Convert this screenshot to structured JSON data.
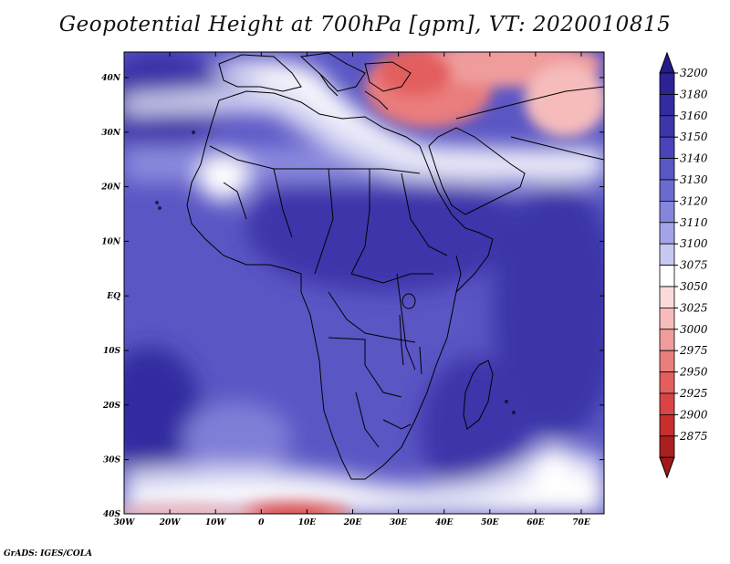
{
  "title": "Geopotential Height at 700hPa [gpm], VT: 2020010815",
  "footer": "GrADS: IGES/COLA",
  "map": {
    "lon_labels": [
      "30W",
      "20W",
      "10W",
      "0",
      "10E",
      "20E",
      "30E",
      "40E",
      "50E",
      "60E",
      "70E"
    ],
    "lat_labels": [
      "40N",
      "30N",
      "20N",
      "10N",
      "EQ",
      "10S",
      "20S",
      "30S",
      "40S"
    ]
  },
  "colorbar": {
    "levels": [
      "3200",
      "3180",
      "3160",
      "3150",
      "3140",
      "3130",
      "3120",
      "3110",
      "3100",
      "3075",
      "3050",
      "3025",
      "3000",
      "2975",
      "2950",
      "2925",
      "2900",
      "2875"
    ],
    "colors": {
      "top_cap": "#241a8a",
      "segments": [
        "#2b2394",
        "#332ba0",
        "#3d36aa",
        "#4a44b8",
        "#5a56c4",
        "#6d6bd0",
        "#8585dc",
        "#a3a4e8",
        "#c7c8f2",
        "#ffffff",
        "#fbdada",
        "#f6bcbc",
        "#f09c9c",
        "#ea7d7d",
        "#e35f5f",
        "#d94545",
        "#c72e2e",
        "#aa1f1f"
      ],
      "bottom_cap": "#a01818"
    }
  },
  "colors": {
    "ocean_base": "#5a56c4",
    "land_high": "#3d36aa",
    "low_red": "#e88080",
    "white_band": "#ffffff",
    "coastline": "#000000"
  }
}
